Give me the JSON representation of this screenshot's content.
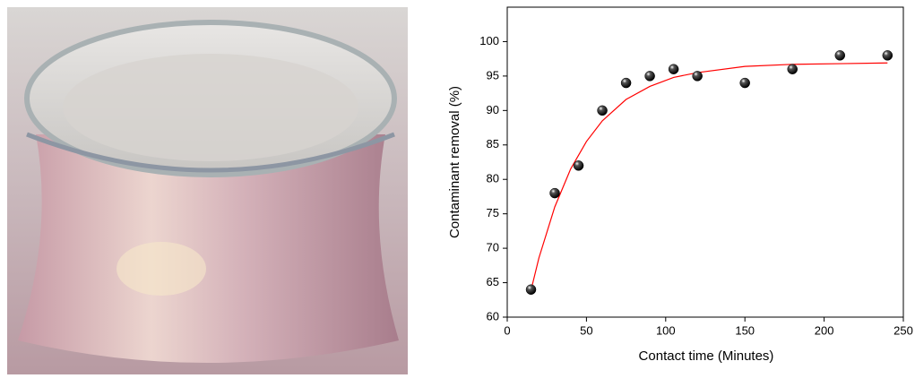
{
  "chart_data": {
    "type": "scatter",
    "x_label": "Contact time (Minutes)",
    "y_label": "Contaminant removal (%)",
    "x": [
      15,
      30,
      45,
      60,
      75,
      90,
      105,
      120,
      150,
      180,
      210,
      240
    ],
    "values": [
      64,
      78,
      82,
      90,
      94,
      95,
      96,
      95,
      94,
      96,
      98,
      98
    ],
    "color": "#000000",
    "fit": {
      "color": "#ff0000",
      "x": [
        15,
        20,
        30,
        40,
        50,
        60,
        75,
        90,
        105,
        120,
        150,
        180,
        210,
        240
      ],
      "values": [
        63.9,
        68.6,
        76.0,
        81.5,
        85.5,
        88.5,
        91.6,
        93.5,
        94.8,
        95.5,
        96.4,
        96.7,
        96.8,
        96.9
      ]
    },
    "xlim": [
      0,
      250
    ],
    "ylim": [
      60,
      105
    ],
    "xticks": [
      0,
      50,
      100,
      150,
      200,
      250
    ],
    "yticks": [
      60,
      65,
      70,
      75,
      80,
      85,
      90,
      95,
      100
    ]
  }
}
